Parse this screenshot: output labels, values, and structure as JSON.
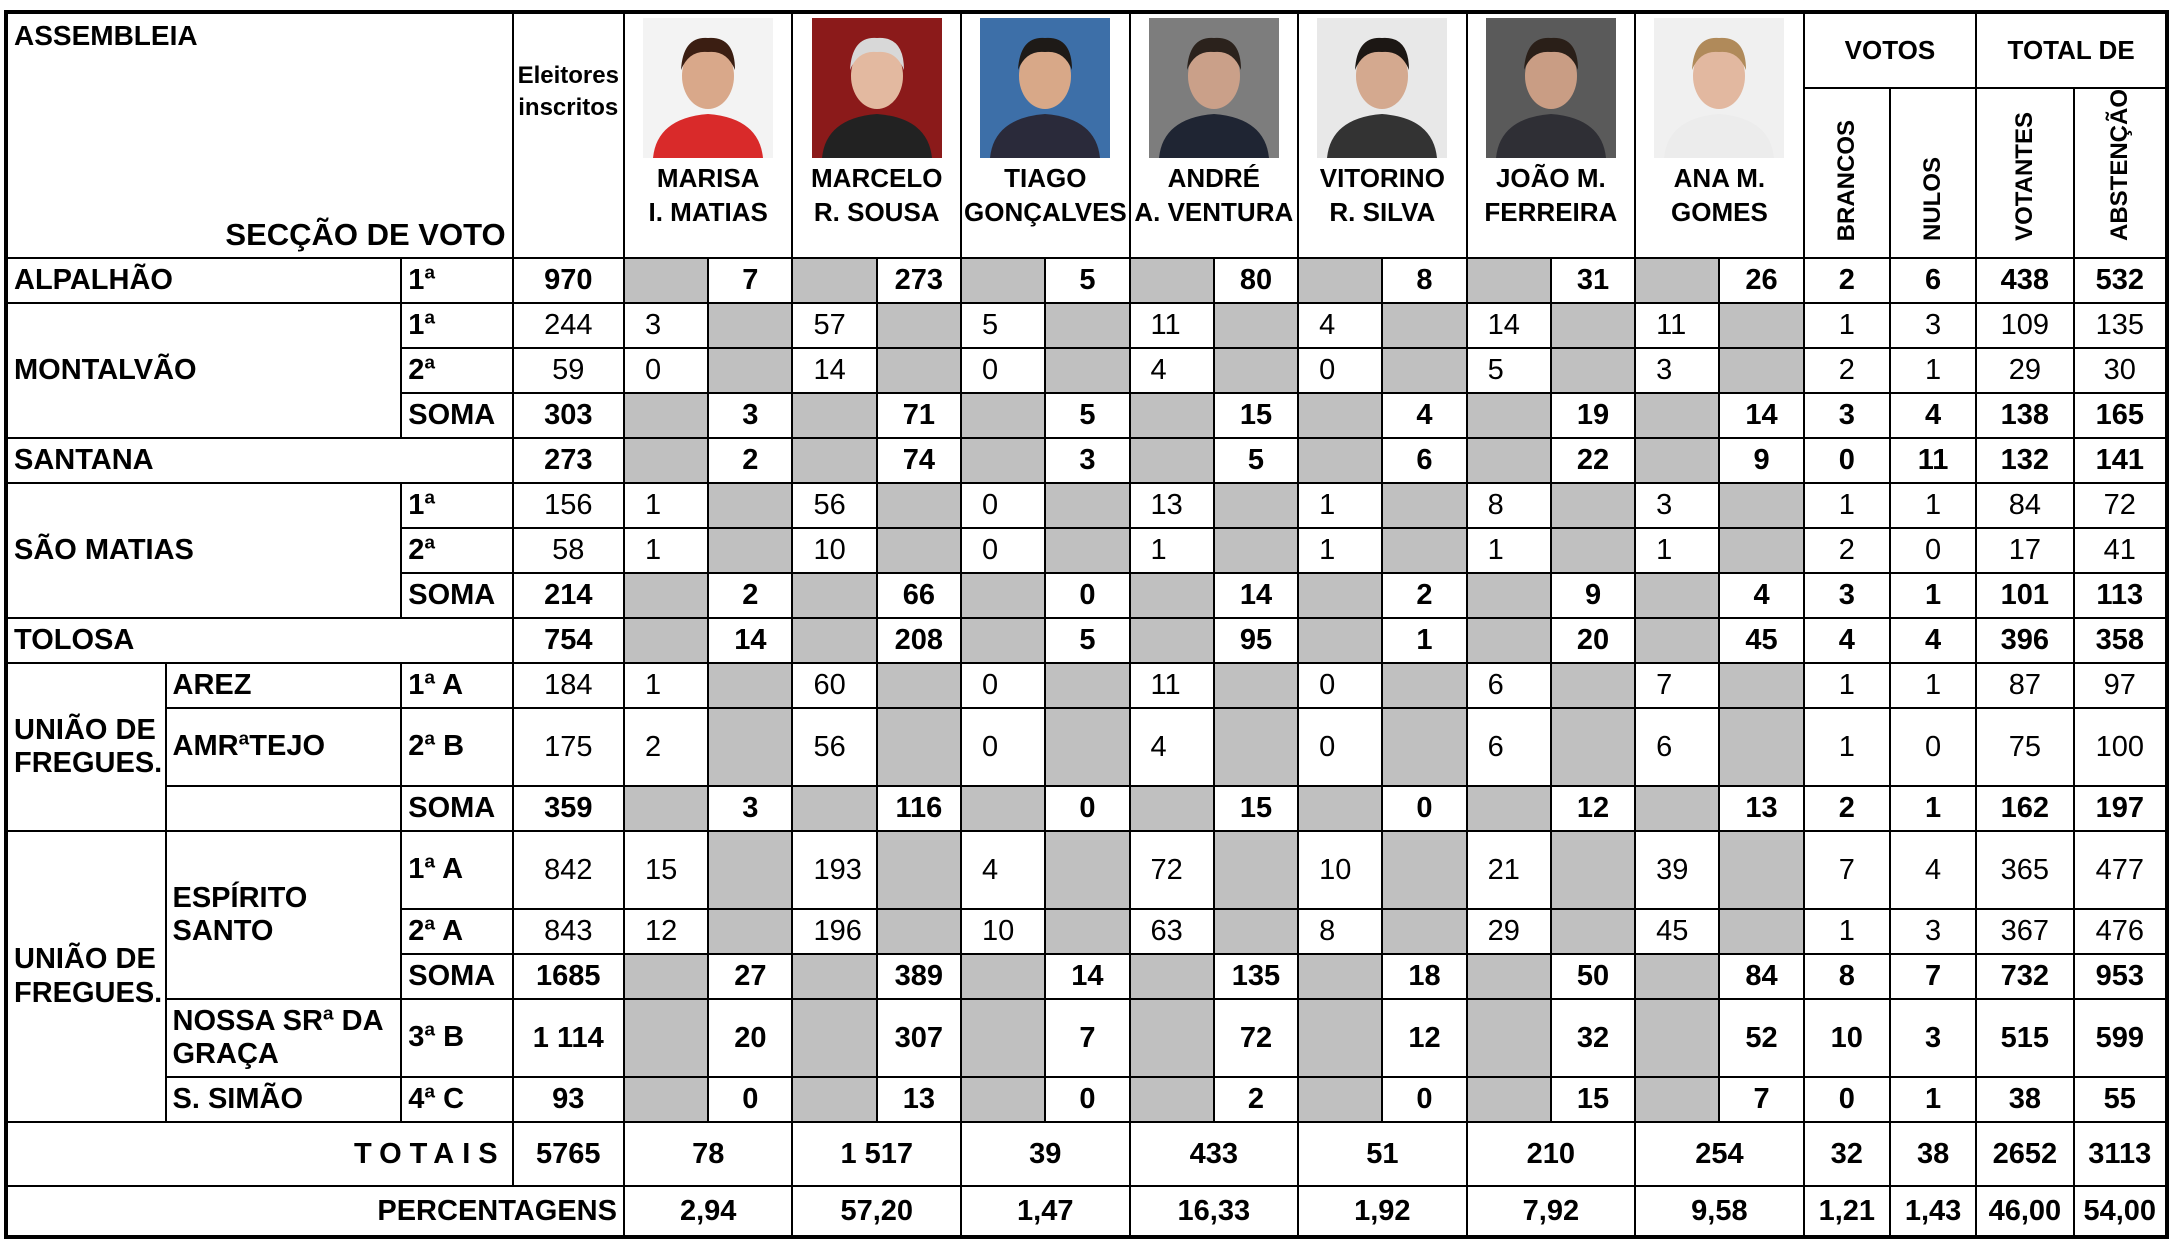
{
  "header": {
    "assembleia": "ASSEMBLEIA",
    "seccao": "SECÇÃO DE VOTO",
    "eleitores": "Eleitores inscritos",
    "candidates": [
      [
        "MARISA",
        "I. MATIAS"
      ],
      [
        "MARCELO",
        "R. SOUSA"
      ],
      [
        "TIAGO",
        "GONÇALVES"
      ],
      [
        "ANDRÉ",
        "A. VENTURA"
      ],
      [
        "VITORINO",
        "R. SILVA"
      ],
      [
        "JOÃO M.",
        "FERREIRA"
      ],
      [
        "ANA M.",
        "GOMES"
      ]
    ],
    "votos": "VOTOS",
    "brancos": "BRANCOS",
    "nulos": "NULOS",
    "total": "TOTAL DE",
    "votantes": "VOTANTES",
    "abstencao": "ABSTENÇÃO"
  },
  "table": {
    "rows": [
      {
        "assembleia": "ALPALHÃO",
        "seccao": "1ª",
        "eleitores": 970,
        "votes": [
          7,
          273,
          5,
          80,
          8,
          31,
          26
        ],
        "brancos": 2,
        "nulos": 6,
        "votantes": 438,
        "abstencao": 532,
        "bold": true
      },
      {
        "assembleia": "MONTALVÃO",
        "seccao": "1ª",
        "eleitores": 244,
        "votes": [
          3,
          57,
          5,
          11,
          4,
          14,
          11
        ],
        "brancos": 1,
        "nulos": 3,
        "votantes": 109,
        "abstencao": 135,
        "bold": false
      },
      {
        "seccao": "2ª",
        "eleitores": 59,
        "votes": [
          0,
          14,
          0,
          4,
          0,
          5,
          3
        ],
        "brancos": 2,
        "nulos": 1,
        "votantes": 29,
        "abstencao": 30,
        "bold": false
      },
      {
        "seccao": "SOMA",
        "eleitores": 303,
        "votes": [
          3,
          71,
          5,
          15,
          4,
          19,
          14
        ],
        "brancos": 3,
        "nulos": 4,
        "votantes": 138,
        "abstencao": 165,
        "bold": true
      },
      {
        "assembleia": "SANTANA",
        "eleitores": 273,
        "votes": [
          2,
          74,
          3,
          5,
          6,
          22,
          9
        ],
        "brancos": 0,
        "nulos": 11,
        "votantes": 132,
        "abstencao": 141,
        "bold": true
      },
      {
        "assembleia": "SÃO MATIAS",
        "seccao": "1ª",
        "eleitores": 156,
        "votes": [
          1,
          56,
          0,
          13,
          1,
          8,
          3
        ],
        "brancos": 1,
        "nulos": 1,
        "votantes": 84,
        "abstencao": 72,
        "bold": false
      },
      {
        "seccao": "2ª",
        "eleitores": 58,
        "votes": [
          1,
          10,
          0,
          1,
          1,
          1,
          1
        ],
        "brancos": 2,
        "nulos": 0,
        "votantes": 17,
        "abstencao": 41,
        "bold": false
      },
      {
        "seccao": "SOMA",
        "eleitores": 214,
        "votes": [
          2,
          66,
          0,
          14,
          2,
          9,
          4
        ],
        "brancos": 3,
        "nulos": 1,
        "votantes": 101,
        "abstencao": 113,
        "bold": true
      },
      {
        "assembleia": "TOLOSA",
        "eleitores": 754,
        "votes": [
          14,
          208,
          5,
          95,
          1,
          20,
          45
        ],
        "brancos": 4,
        "nulos": 4,
        "votantes": 396,
        "abstencao": 358,
        "bold": true
      },
      {
        "assembleia": "UNIÃO DE FREGUES.",
        "freguesia": "AREZ",
        "seccao": "1ª A",
        "eleitores": 184,
        "votes": [
          1,
          60,
          0,
          11,
          0,
          6,
          7
        ],
        "brancos": 1,
        "nulos": 1,
        "votantes": 87,
        "abstencao": 97,
        "bold": false
      },
      {
        "freguesia": "AMRªTEJO",
        "seccao": "2ª B",
        "eleitores": 175,
        "votes": [
          2,
          56,
          0,
          4,
          0,
          6,
          6
        ],
        "brancos": 1,
        "nulos": 0,
        "votantes": 75,
        "abstencao": 100,
        "bold": false
      },
      {
        "freguesia": null,
        "seccao": "SOMA",
        "eleitores": 359,
        "votes": [
          3,
          116,
          0,
          15,
          0,
          12,
          13
        ],
        "brancos": 2,
        "nulos": 1,
        "votantes": 162,
        "abstencao": 197,
        "bold": true
      },
      {
        "assembleia": "UNIÃO DE FREGUES.",
        "freguesia": "ESPÍRITO SANTO",
        "seccao": "1ª A",
        "eleitores": 842,
        "votes": [
          15,
          193,
          4,
          72,
          10,
          21,
          39
        ],
        "brancos": 7,
        "nulos": 4,
        "votantes": 365,
        "abstencao": 477,
        "bold": false
      },
      {
        "seccao": "2ª A",
        "eleitores": 843,
        "votes": [
          12,
          196,
          10,
          63,
          8,
          29,
          45
        ],
        "brancos": 1,
        "nulos": 3,
        "votantes": 367,
        "abstencao": 476,
        "bold": false
      },
      {
        "seccao": "SOMA",
        "eleitores": 1685,
        "votes": [
          27,
          389,
          14,
          135,
          18,
          50,
          84
        ],
        "brancos": 8,
        "nulos": 7,
        "votantes": 732,
        "abstencao": 953,
        "bold": true
      },
      {
        "freguesia": "NOSSA SRª DA GRAÇA",
        "seccao": "3ª B",
        "eleitores": "1 114",
        "votes": [
          20,
          307,
          7,
          72,
          12,
          32,
          52
        ],
        "brancos": 10,
        "nulos": 3,
        "votantes": 515,
        "abstencao": 599,
        "bold": true
      },
      {
        "freguesia": "S. SIMÃO",
        "seccao": "4ª C",
        "eleitores": 93,
        "votes": [
          0,
          13,
          0,
          2,
          0,
          15,
          7
        ],
        "brancos": 0,
        "nulos": 1,
        "votantes": 38,
        "abstencao": 55,
        "bold": true
      }
    ]
  },
  "totals": {
    "label": "TOTAIS",
    "eleitores": 5765,
    "votes": [
      78,
      "1 517",
      39,
      433,
      51,
      210,
      254
    ],
    "brancos": 32,
    "nulos": 38,
    "votantes": 2652,
    "abstencao": 3113
  },
  "percentages": {
    "label": "PERCENTAGENS",
    "votes": [
      "2,94",
      "57,20",
      "1,47",
      "16,33",
      "1,92",
      "7,92",
      "9,58"
    ],
    "brancos": "1,21",
    "nulos": "1,43",
    "votantes": "46,00",
    "abstencao": "54,00"
  }
}
